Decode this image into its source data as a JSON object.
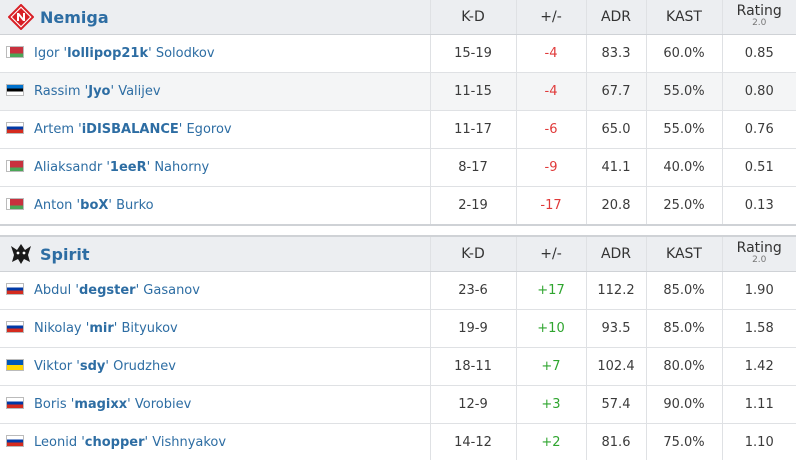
{
  "teams": [
    {
      "name": "Nemiga",
      "headers": [
        "K-D",
        "+/-",
        "ADR",
        "KAST",
        "Rating"
      ],
      "rating_version": "2.0",
      "players": [
        {
          "name": [
            "Igor '",
            "lollipop21k",
            "' Solodkov"
          ],
          "kd": "15-19",
          "diff": "-4",
          "adr": "83.3",
          "kast": "60.0%",
          "rating": "0.85"
        },
        {
          "name": [
            "Rassim '",
            "Jyo",
            "' Valijev"
          ],
          "kd": "11-15",
          "diff": "-4",
          "adr": "67.7",
          "kast": "55.0%",
          "rating": "0.80"
        },
        {
          "name": [
            "Artem '",
            "iDISBALANCE",
            "' Egorov"
          ],
          "kd": "11-17",
          "diff": "-6",
          "adr": "65.0",
          "kast": "55.0%",
          "rating": "0.76"
        },
        {
          "name": [
            "Aliaksandr '",
            "1eeR",
            "' Nahorny"
          ],
          "kd": "8-17",
          "diff": "-9",
          "adr": "41.1",
          "kast": "40.0%",
          "rating": "0.51"
        },
        {
          "name": [
            "Anton '",
            "boX",
            "' Burko"
          ],
          "kd": "2-19",
          "diff": "-17",
          "adr": "20.8",
          "kast": "25.0%",
          "rating": "0.13"
        }
      ]
    },
    {
      "name": "Spirit",
      "headers": [
        "K-D",
        "+/-",
        "ADR",
        "KAST",
        "Rating"
      ],
      "rating_version": "2.0",
      "players": [
        {
          "name": [
            "Abdul '",
            "degster",
            "' Gasanov"
          ],
          "kd": "23-6",
          "diff": "+17",
          "adr": "112.2",
          "kast": "85.0%",
          "rating": "1.90"
        },
        {
          "name": [
            "Nikolay '",
            "mir",
            "' Bityukov"
          ],
          "kd": "19-9",
          "diff": "+10",
          "adr": "93.5",
          "kast": "85.0%",
          "rating": "1.58"
        },
        {
          "name": [
            "Viktor '",
            "sdy",
            "' Orudzhev"
          ],
          "kd": "18-11",
          "diff": "+7",
          "adr": "102.4",
          "kast": "80.0%",
          "rating": "1.42"
        },
        {
          "name": [
            "Boris '",
            "magixx",
            "' Vorobiev"
          ],
          "kd": "12-9",
          "diff": "+3",
          "adr": "57.4",
          "kast": "90.0%",
          "rating": "1.11"
        },
        {
          "name": [
            "Leonid '",
            "chopper",
            "' Vishnyakov"
          ],
          "kd": "14-12",
          "diff": "+2",
          "adr": "81.6",
          "kast": "75.0%",
          "rating": "1.10"
        }
      ]
    }
  ]
}
